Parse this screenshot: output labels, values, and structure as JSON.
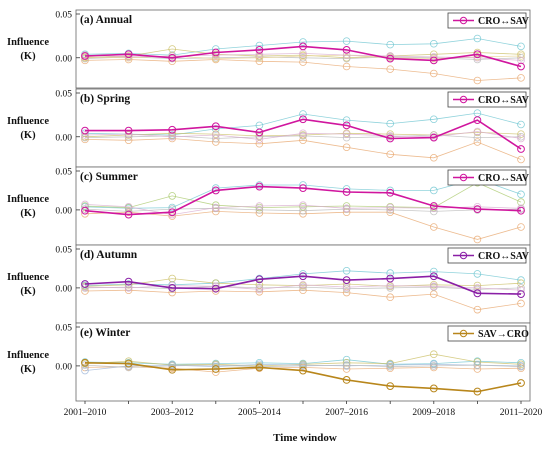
{
  "x_ticks": [
    "2001–2010",
    "2003–2012",
    "2005–2014",
    "2007–2016",
    "2009–2018",
    "2011–2020"
  ],
  "xlabel": "Time window",
  "ylabel_line1": "Influence",
  "ylabel_line2": "(K)",
  "y_tick_labels": [
    "0.05",
    "0.00"
  ],
  "colors": {
    "annual": "#d0169e",
    "spring": "#d0169e",
    "summer": "#d0169e",
    "autumn": "#8a1fa6",
    "winter": "#b8861b",
    "frame": "#666666",
    "bg_light": [
      "#6cc4d0",
      "#e7a56c",
      "#c9bd62",
      "#a8c86a",
      "#b5b5b5",
      "#9fb7da",
      "#d8a9cf",
      "#e6cf8a"
    ]
  },
  "chart_data": [
    {
      "type": "line",
      "title": "(a) Annual",
      "legend": "CRO↔SAV",
      "ylim": [
        -0.03,
        0.05
      ],
      "x": [
        "2001–2010",
        "2002–2011",
        "2003–2012",
        "2004–2013",
        "2005–2014",
        "2006–2015",
        "2007–2016",
        "2008–2017",
        "2009–2018",
        "2010–2019",
        "2011–2020"
      ],
      "series": [
        {
          "name": "CRO↔SAV",
          "highlight": true,
          "color": "#d0169e",
          "values": [
            0.002,
            0.004,
            0.0,
            0.006,
            0.009,
            0.013,
            0.009,
            -0.001,
            -0.003,
            0.004,
            -0.01
          ]
        },
        {
          "highlight": false,
          "color": "#6cc4d0",
          "values": [
            0.004,
            0.005,
            0.003,
            0.01,
            0.014,
            0.018,
            0.019,
            0.015,
            0.016,
            0.022,
            0.013
          ]
        },
        {
          "highlight": false,
          "color": "#e7a56c",
          "values": [
            -0.003,
            -0.002,
            -0.004,
            -0.002,
            -0.004,
            -0.005,
            -0.01,
            -0.013,
            -0.018,
            -0.026,
            -0.023
          ]
        },
        {
          "highlight": false,
          "color": "#c9bd62",
          "values": [
            0.0,
            0.002,
            0.01,
            0.004,
            0.002,
            0.003,
            0.0,
            0.002,
            0.004,
            0.006,
            0.004
          ]
        },
        {
          "highlight": false,
          "color": "#b5b5b5",
          "values": [
            -0.001,
            0.001,
            -0.001,
            0.0,
            0.001,
            0.0,
            -0.001,
            0.001,
            0.0,
            -0.002,
            0.0
          ]
        },
        {
          "highlight": false,
          "color": "#e6cf8a",
          "values": [
            0.001,
            0.0,
            0.002,
            -0.001,
            0.0,
            0.002,
            0.003,
            0.0,
            -0.001,
            0.001,
            0.002
          ]
        },
        {
          "highlight": false,
          "color": "#d8a9cf",
          "values": [
            0.003,
            0.001,
            0.002,
            0.003,
            0.004,
            0.005,
            0.003,
            0.002,
            0.001,
            0.0,
            -0.003
          ]
        }
      ]
    },
    {
      "type": "line",
      "title": "(b) Spring",
      "legend": "CRO↔SAV",
      "ylim": [
        -0.03,
        0.05
      ],
      "x": [
        "2001–2010",
        "2002–2011",
        "2003–2012",
        "2004–2013",
        "2005–2014",
        "2006–2015",
        "2007–2016",
        "2008–2017",
        "2009–2018",
        "2010–2019",
        "2011–2020"
      ],
      "series": [
        {
          "name": "CRO↔SAV",
          "highlight": true,
          "color": "#d0169e",
          "values": [
            0.007,
            0.007,
            0.008,
            0.012,
            0.005,
            0.02,
            0.013,
            -0.002,
            -0.001,
            0.019,
            -0.014
          ]
        },
        {
          "highlight": false,
          "color": "#6cc4d0",
          "values": [
            0.004,
            0.003,
            0.002,
            0.009,
            0.013,
            0.026,
            0.019,
            0.015,
            0.02,
            0.027,
            0.014
          ]
        },
        {
          "highlight": false,
          "color": "#e7a56c",
          "values": [
            -0.003,
            -0.004,
            -0.002,
            -0.006,
            -0.008,
            -0.004,
            -0.012,
            -0.02,
            -0.024,
            -0.006,
            -0.026
          ]
        },
        {
          "highlight": false,
          "color": "#c9bd62",
          "values": [
            0.0,
            0.002,
            0.004,
            0.003,
            0.001,
            0.002,
            0.004,
            0.003,
            0.002,
            0.005,
            0.003
          ]
        },
        {
          "highlight": false,
          "color": "#b5b5b5",
          "values": [
            -0.001,
            0.0,
            0.001,
            -0.002,
            0.0,
            0.001,
            -0.001,
            0.0,
            0.002,
            -0.001,
            0.0
          ]
        },
        {
          "highlight": false,
          "color": "#d8a9cf",
          "values": [
            0.002,
            0.003,
            0.0,
            0.002,
            -0.003,
            0.004,
            0.003,
            0.001,
            0.0,
            0.006,
            -0.002
          ]
        }
      ]
    },
    {
      "type": "line",
      "title": "(c) Summer",
      "legend": "CRO↔SAV",
      "ylim": [
        -0.04,
        0.05
      ],
      "x": [
        "2001–2010",
        "2002–2011",
        "2003–2012",
        "2004–2013",
        "2005–2014",
        "2006–2015",
        "2007–2016",
        "2008–2017",
        "2009–2018",
        "2010–2019",
        "2011–2020"
      ],
      "series": [
        {
          "name": "CRO↔SAV",
          "highlight": true,
          "color": "#d0169e",
          "values": [
            -0.001,
            -0.006,
            -0.003,
            0.025,
            0.03,
            0.028,
            0.023,
            0.022,
            0.005,
            0.001,
            -0.001
          ]
        },
        {
          "highlight": false,
          "color": "#6cc4d0",
          "values": [
            0.004,
            0.002,
            0.003,
            0.028,
            0.032,
            0.032,
            0.027,
            0.025,
            0.025,
            0.04,
            0.02
          ]
        },
        {
          "highlight": false,
          "color": "#e7a56c",
          "values": [
            -0.005,
            -0.003,
            -0.008,
            -0.002,
            -0.004,
            -0.005,
            -0.003,
            -0.003,
            -0.022,
            -0.038,
            -0.022
          ]
        },
        {
          "highlight": false,
          "color": "#a8c86a",
          "values": [
            0.005,
            0.003,
            0.018,
            0.006,
            0.003,
            0.004,
            0.005,
            0.004,
            0.003,
            0.035,
            0.01
          ]
        },
        {
          "highlight": false,
          "color": "#b5b5b5",
          "values": [
            0.001,
            -0.002,
            0.001,
            0.002,
            0.0,
            -0.001,
            0.001,
            0.0,
            -0.002,
            0.0,
            0.001
          ]
        },
        {
          "highlight": false,
          "color": "#d8a9cf",
          "values": [
            0.007,
            0.004,
            -0.006,
            0.003,
            0.005,
            0.006,
            0.002,
            0.003,
            0.002,
            0.004,
            0.002
          ]
        }
      ]
    },
    {
      "type": "line",
      "title": "(d) Autumn",
      "legend": "CRO↔SAV",
      "ylim": [
        -0.04,
        0.05
      ],
      "x": [
        "2001–2010",
        "2002–2011",
        "2003–2012",
        "2004–2013",
        "2005–2014",
        "2006–2015",
        "2007–2016",
        "2008–2017",
        "2009–2018",
        "2010–2019",
        "2011–2020"
      ],
      "series": [
        {
          "name": "CRO↔SAV",
          "highlight": true,
          "color": "#8a1fa6",
          "values": [
            0.005,
            0.008,
            0.0,
            -0.001,
            0.011,
            0.015,
            0.01,
            0.012,
            0.015,
            -0.007,
            -0.008
          ]
        },
        {
          "highlight": false,
          "color": "#6cc4d0",
          "values": [
            0.003,
            0.005,
            0.004,
            0.006,
            0.012,
            0.018,
            0.022,
            0.019,
            0.021,
            0.018,
            0.01
          ]
        },
        {
          "highlight": false,
          "color": "#e7a56c",
          "values": [
            -0.004,
            -0.003,
            -0.006,
            -0.004,
            -0.005,
            -0.003,
            -0.006,
            -0.012,
            -0.008,
            -0.028,
            -0.02
          ]
        },
        {
          "highlight": false,
          "color": "#c9bd62",
          "values": [
            0.002,
            0.004,
            0.012,
            0.006,
            0.004,
            0.003,
            0.005,
            0.002,
            0.004,
            0.003,
            0.006
          ]
        },
        {
          "highlight": false,
          "color": "#b5b5b5",
          "values": [
            0.0,
            0.001,
            -0.001,
            0.002,
            0.0,
            0.001,
            -0.001,
            0.0,
            0.001,
            -0.002,
            0.0
          ]
        },
        {
          "highlight": false,
          "color": "#d8a9cf",
          "values": [
            0.001,
            0.0,
            0.003,
            0.002,
            -0.002,
            0.004,
            0.001,
            0.003,
            0.002,
            0.0,
            -0.003
          ]
        }
      ]
    },
    {
      "type": "line",
      "title": "(e) Winter",
      "legend": "SAV→CRO",
      "ylim": [
        -0.04,
        0.05
      ],
      "x": [
        "2001–2010",
        "2002–2011",
        "2003–2012",
        "2004–2013",
        "2005–2014",
        "2006–2015",
        "2007–2016",
        "2008–2017",
        "2009–2018",
        "2010–2019",
        "2011–2020"
      ],
      "series": [
        {
          "name": "SAV→CRO",
          "highlight": true,
          "color": "#b8861b",
          "values": [
            0.004,
            0.003,
            -0.005,
            -0.004,
            -0.002,
            -0.006,
            -0.018,
            -0.026,
            -0.029,
            -0.033,
            -0.022
          ]
        },
        {
          "highlight": false,
          "color": "#6cc4d0",
          "values": [
            0.005,
            0.004,
            0.002,
            0.003,
            0.004,
            0.003,
            0.008,
            0.002,
            0.003,
            0.006,
            0.004
          ]
        },
        {
          "highlight": false,
          "color": "#c9bd62",
          "values": [
            0.003,
            0.006,
            0.001,
            0.002,
            0.0,
            0.002,
            0.004,
            0.003,
            0.015,
            0.005,
            0.002
          ]
        },
        {
          "highlight": false,
          "color": "#e7a56c",
          "values": [
            -0.002,
            -0.001,
            -0.003,
            -0.008,
            -0.003,
            -0.002,
            -0.004,
            -0.003,
            -0.002,
            -0.004,
            -0.003
          ]
        },
        {
          "highlight": false,
          "color": "#9fb7da",
          "values": [
            -0.006,
            0.0,
            0.001,
            -0.001,
            0.002,
            0.001,
            0.0,
            0.001,
            0.002,
            0.001,
            0.0
          ]
        },
        {
          "highlight": false,
          "color": "#b5b5b5",
          "values": [
            0.001,
            -0.002,
            0.0,
            0.001,
            -0.001,
            0.0,
            0.001,
            -0.001,
            0.0,
            0.001,
            -0.001
          ]
        }
      ]
    }
  ]
}
